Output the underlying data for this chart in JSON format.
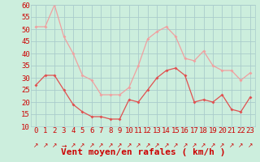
{
  "hours": [
    0,
    1,
    2,
    3,
    4,
    5,
    6,
    7,
    8,
    9,
    10,
    11,
    12,
    13,
    14,
    15,
    16,
    17,
    18,
    19,
    20,
    21,
    22,
    23
  ],
  "wind_avg": [
    27,
    31,
    31,
    25,
    19,
    16,
    14,
    14,
    13,
    13,
    21,
    20,
    25,
    30,
    33,
    34,
    31,
    20,
    21,
    20,
    23,
    17,
    16,
    22
  ],
  "wind_gust": [
    51,
    51,
    60,
    47,
    40,
    31,
    29,
    23,
    23,
    23,
    26,
    35,
    46,
    49,
    51,
    47,
    38,
    37,
    41,
    35,
    33,
    33,
    29,
    32
  ],
  "avg_color": "#e05050",
  "gust_color": "#f0a0a0",
  "bg_color": "#cceedd",
  "grid_color": "#aacccc",
  "ylim": [
    10,
    60
  ],
  "yticks": [
    10,
    15,
    20,
    25,
    30,
    35,
    40,
    45,
    50,
    55,
    60
  ],
  "xlabel": "Vent moyen/en rafales ( km/h )",
  "label_color": "#cc0000",
  "tick_fontsize": 6.5,
  "xlabel_fontsize": 8.0,
  "arrow_symbols": [
    "↗",
    "↗",
    "↗",
    "→",
    "↗",
    "↗",
    "↗",
    "↗",
    "↗",
    "↗",
    "↗",
    "↗",
    "↗",
    "↗",
    "↗",
    "↗",
    "↗",
    "↗",
    "↗",
    "↗",
    "↗",
    "↗",
    "↗",
    "↗"
  ]
}
